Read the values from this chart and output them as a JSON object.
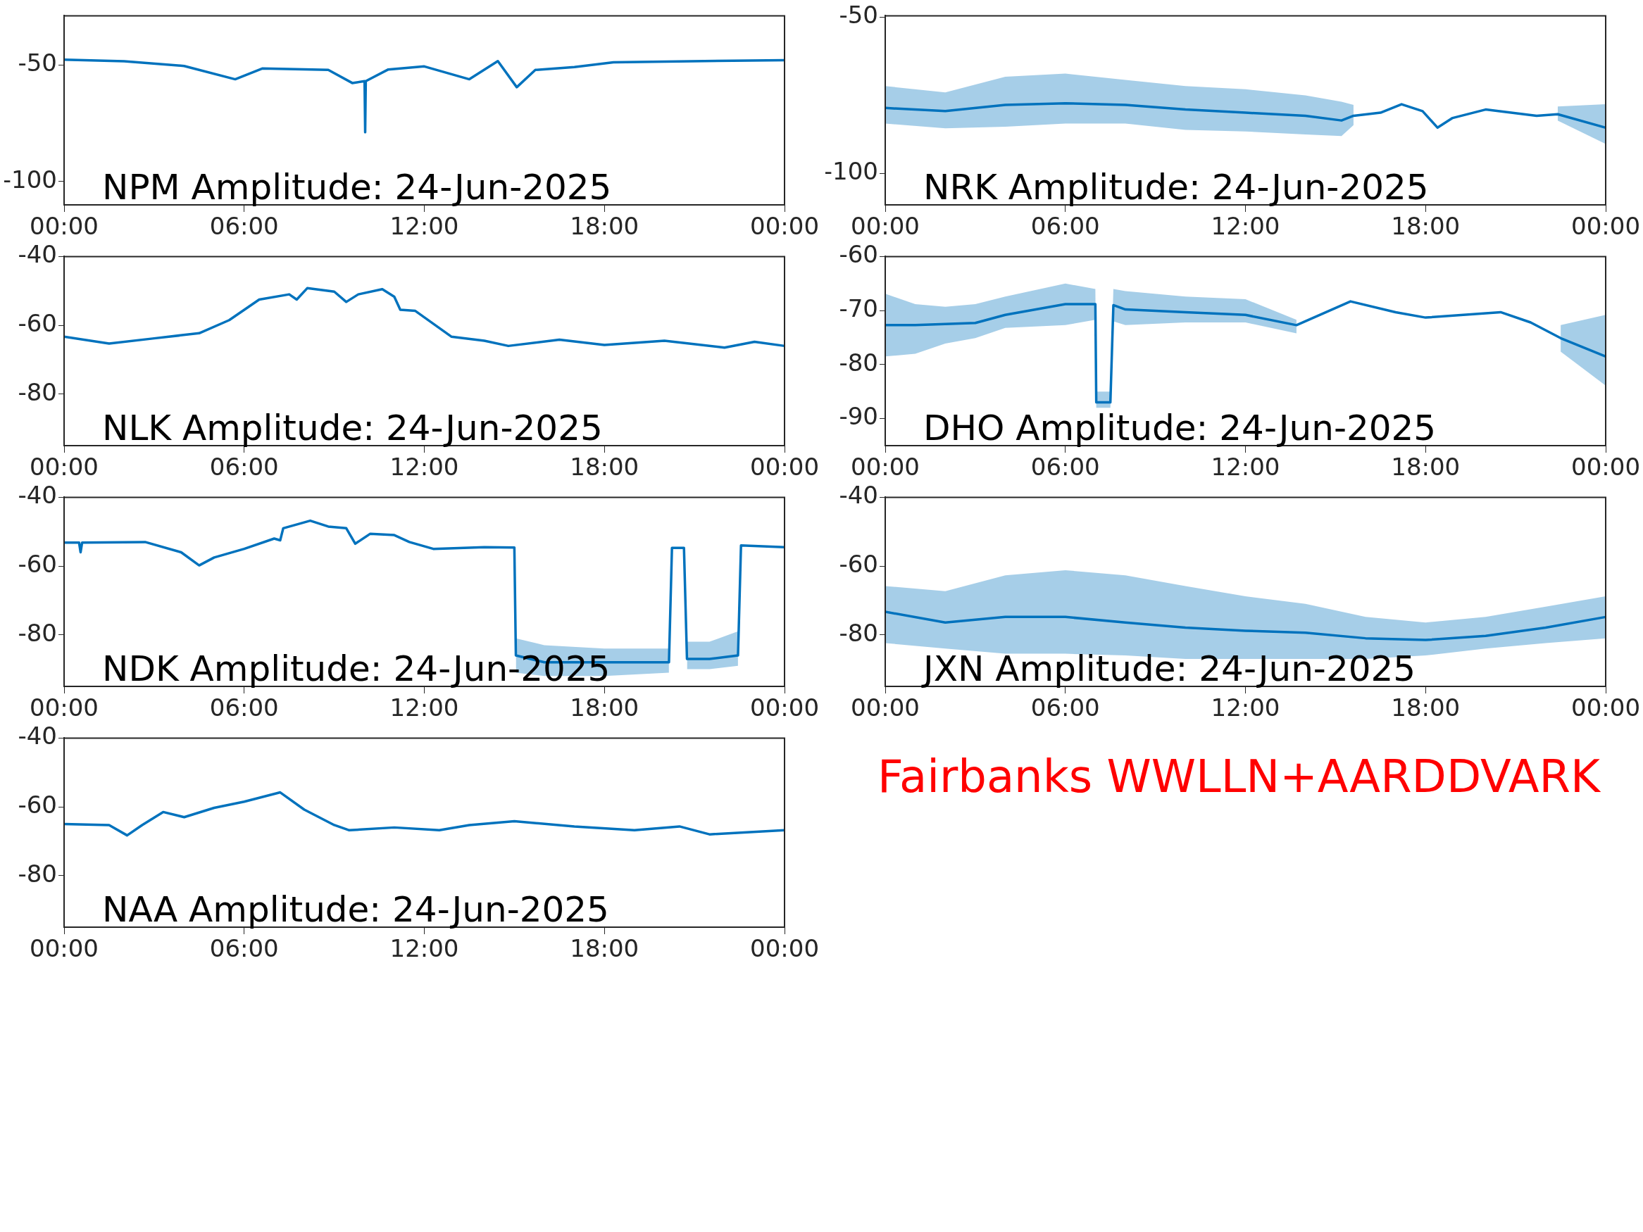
{
  "chart_data": [
    {
      "type": "line",
      "title": "NPM Amplitude: 24-Jun-2025",
      "xlim": [
        0,
        24
      ],
      "xticks": [
        {
          "value": 0,
          "label": "00:00"
        },
        {
          "value": 6,
          "label": "06:00"
        },
        {
          "value": 12,
          "label": "12:00"
        },
        {
          "value": 18,
          "label": "18:00"
        },
        {
          "value": 24,
          "label": "00:00"
        }
      ],
      "ylim": [
        -110,
        -29
      ],
      "yticks": [
        -100,
        -50
      ],
      "x": [
        0,
        2,
        4,
        5.7,
        6.6,
        8.8,
        9.6,
        10.01,
        10.03,
        10.05,
        10.8,
        12,
        13.5,
        14.45,
        15.08,
        15.7,
        17,
        18.3,
        24
      ],
      "series": [
        {
          "color": "#0072bd",
          "values": [
            -47.8,
            -48.5,
            -50.5,
            -56.2,
            -51.6,
            -52.2,
            -57.8,
            -57,
            -78.9,
            -57,
            -52,
            -50.7,
            -56.2,
            -48.4,
            -59.6,
            -52.2,
            -51,
            -48.9,
            -48
          ]
        }
      ]
    },
    {
      "type": "line",
      "title": "NRK Amplitude: 24-Jun-2025",
      "xlim": [
        0,
        24
      ],
      "xticks": [
        {
          "value": 0,
          "label": "00:00"
        },
        {
          "value": 6,
          "label": "06:00"
        },
        {
          "value": 12,
          "label": "12:00"
        },
        {
          "value": 18,
          "label": "18:00"
        },
        {
          "value": 24,
          "label": "00:00"
        }
      ],
      "ylim": [
        -110,
        -49.5
      ],
      "yticks": [
        -100,
        -50
      ],
      "x": [
        0,
        2,
        4,
        6,
        8,
        10,
        12,
        14,
        15.2,
        15.6,
        16.5,
        17.2,
        17.9,
        18.4,
        18.9,
        20,
        21.7,
        22.4,
        24
      ],
      "series": [
        {
          "color": "#0072bd",
          "values": [
            -79,
            -80,
            -78,
            -77.5,
            -78,
            -79.5,
            -80.5,
            -81.5,
            -83,
            -81.5,
            -80.5,
            -77.8,
            -80,
            -85.3,
            -82.2,
            -79.5,
            -81.5,
            -81,
            -85.3
          ],
          "upper": [
            -72,
            -74,
            -69,
            -68,
            -70,
            -72,
            -73,
            -75,
            -77,
            -78,
            null,
            null,
            null,
            null,
            null,
            null,
            null,
            -78.5,
            -77.8
          ],
          "lower": [
            -84,
            -85.5,
            -85,
            -84,
            -84,
            -86,
            -86.5,
            -87.5,
            -88,
            -84.5,
            null,
            null,
            null,
            null,
            null,
            null,
            null,
            -83,
            -90.5
          ]
        }
      ]
    },
    {
      "type": "line",
      "title": "NLK Amplitude: 24-Jun-2025",
      "xlim": [
        0,
        24
      ],
      "xticks": [
        {
          "value": 0,
          "label": "00:00"
        },
        {
          "value": 6,
          "label": "06:00"
        },
        {
          "value": 12,
          "label": "12:00"
        },
        {
          "value": 18,
          "label": "18:00"
        },
        {
          "value": 24,
          "label": "00:00"
        }
      ],
      "ylim": [
        -95,
        -40
      ],
      "yticks": [
        -80,
        -60,
        -40
      ],
      "x": [
        0,
        1.5,
        3,
        4.5,
        5.5,
        6.5,
        7.5,
        7.75,
        8.1,
        9,
        9.4,
        9.8,
        10.6,
        11,
        11.2,
        11.7,
        12.9,
        14,
        14.8,
        16.5,
        18,
        20,
        22,
        23,
        24
      ],
      "series": [
        {
          "color": "#0072bd",
          "values": [
            -63.3,
            -65.3,
            -63.8,
            -62.3,
            -58.5,
            -52.5,
            -51,
            -52.5,
            -49.2,
            -50.2,
            -53.2,
            -51,
            -49.5,
            -51.7,
            -55.5,
            -55.8,
            -63.3,
            -64.5,
            -66,
            -64.2,
            -65.7,
            -64.5,
            -66.5,
            -64.8,
            -66
          ]
        }
      ]
    },
    {
      "type": "line",
      "title": "DHO Amplitude: 24-Jun-2025",
      "xlim": [
        0,
        24
      ],
      "xticks": [
        {
          "value": 0,
          "label": "00:00"
        },
        {
          "value": 6,
          "label": "06:00"
        },
        {
          "value": 12,
          "label": "12:00"
        },
        {
          "value": 18,
          "label": "18:00"
        },
        {
          "value": 24,
          "label": "00:00"
        }
      ],
      "ylim": [
        -95,
        -60
      ],
      "yticks": [
        -90,
        -80,
        -70,
        -60
      ],
      "x": [
        0,
        1,
        2,
        3,
        4,
        6,
        7,
        7.03,
        7.5,
        7.6,
        8,
        10,
        12,
        13.7,
        15.5,
        17,
        18,
        20.5,
        21.5,
        22.5,
        24
      ],
      "series": [
        {
          "color": "#0072bd",
          "values": [
            -72.7,
            -72.7,
            -72.5,
            -72.3,
            -70.8,
            -68.8,
            -68.8,
            -87,
            -87,
            -69,
            -69.8,
            -70.3,
            -70.8,
            -72.7,
            -68.3,
            -70.3,
            -71.3,
            -70.3,
            -72.2,
            -75.1,
            -78.5
          ],
          "upper": [
            -66.9,
            -68.8,
            -69.3,
            -68.8,
            -67.4,
            -65,
            -66,
            -85,
            -85,
            -66,
            -66.4,
            -67.4,
            -67.9,
            -71.7,
            null,
            null,
            null,
            null,
            null,
            -72.7,
            -70.8
          ],
          "lower": [
            -78.5,
            -78,
            -76.1,
            -75.1,
            -73.2,
            -72.7,
            -71.7,
            -88,
            -88,
            -72,
            -72.7,
            -72.2,
            -72.2,
            -74.2,
            null,
            null,
            null,
            null,
            null,
            -77.6,
            -83.9
          ]
        }
      ]
    },
    {
      "type": "line",
      "title": "NDK Amplitude: 24-Jun-2025",
      "xlim": [
        0,
        24
      ],
      "xticks": [
        {
          "value": 0,
          "label": "00:00"
        },
        {
          "value": 6,
          "label": "06:00"
        },
        {
          "value": 12,
          "label": "12:00"
        },
        {
          "value": 18,
          "label": "18:00"
        },
        {
          "value": 24,
          "label": "00:00"
        }
      ],
      "ylim": [
        -95,
        -40
      ],
      "yticks": [
        -80,
        -60,
        -40
      ],
      "x": [
        0,
        0.5,
        0.55,
        0.6,
        2.7,
        3.9,
        4.5,
        5,
        6,
        7,
        7.2,
        7.3,
        8.2,
        8.8,
        9.4,
        9.7,
        10.2,
        11,
        11.5,
        12.3,
        14,
        15,
        15.05,
        16,
        18,
        20.15,
        20.25,
        20.65,
        20.75,
        21.5,
        22.45,
        22.55,
        24
      ],
      "series": [
        {
          "color": "#0072bd",
          "values": [
            -53.2,
            -53.2,
            -56,
            -53.2,
            -53,
            -56,
            -59.8,
            -57.5,
            -55,
            -52,
            -52.5,
            -49,
            -46.8,
            -48.5,
            -49,
            -53.5,
            -50.6,
            -51,
            -53,
            -55,
            -54.5,
            -54.6,
            -86,
            -88,
            -88,
            -88,
            -54.7,
            -54.7,
            -87,
            -87,
            -86,
            -54,
            -54.5
          ],
          "upper": [
            null,
            null,
            null,
            null,
            null,
            null,
            null,
            null,
            null,
            null,
            null,
            null,
            null,
            null,
            null,
            null,
            null,
            null,
            null,
            null,
            null,
            null,
            -81,
            -83,
            -84,
            -84,
            null,
            null,
            -82,
            -82,
            -79,
            null,
            null
          ],
          "lower": [
            null,
            null,
            null,
            null,
            null,
            null,
            null,
            null,
            null,
            null,
            null,
            null,
            null,
            null,
            null,
            null,
            null,
            null,
            null,
            null,
            null,
            null,
            -91,
            -92,
            -92,
            -91,
            null,
            null,
            -90,
            -90,
            -89,
            null,
            null
          ]
        }
      ]
    },
    {
      "type": "line",
      "title": "JXN Amplitude: 24-Jun-2025",
      "xlim": [
        0,
        24
      ],
      "xticks": [
        {
          "value": 0,
          "label": "00:00"
        },
        {
          "value": 6,
          "label": "06:00"
        },
        {
          "value": 12,
          "label": "12:00"
        },
        {
          "value": 18,
          "label": "18:00"
        },
        {
          "value": 24,
          "label": "00:00"
        }
      ],
      "ylim": [
        -95,
        -40
      ],
      "yticks": [
        -80,
        -60,
        -40
      ],
      "x": [
        0,
        2,
        4,
        6,
        8,
        10,
        12,
        14,
        16,
        18,
        20,
        22,
        24
      ],
      "series": [
        {
          "color": "#0072bd",
          "values": [
            -73.3,
            -76.4,
            -74.8,
            -74.8,
            -76.4,
            -77.9,
            -78.8,
            -79.4,
            -81,
            -81.5,
            -80.3,
            -77.9,
            -74.8
          ],
          "upper": [
            -65.8,
            -67.3,
            -62.7,
            -61.2,
            -62.7,
            -65.8,
            -68.8,
            -71,
            -74.8,
            -76.4,
            -74.8,
            -71.8,
            -68.8
          ],
          "lower": [
            -82.4,
            -84,
            -85.5,
            -85.5,
            -86,
            -87,
            -87,
            -87,
            -87,
            -86,
            -84,
            -82.4,
            -81
          ]
        }
      ]
    },
    {
      "type": "line",
      "title": "NAA Amplitude: 24-Jun-2025",
      "xlim": [
        0,
        24
      ],
      "xticks": [
        {
          "value": 0,
          "label": "00:00"
        },
        {
          "value": 6,
          "label": "06:00"
        },
        {
          "value": 12,
          "label": "12:00"
        },
        {
          "value": 18,
          "label": "18:00"
        },
        {
          "value": 24,
          "label": "00:00"
        }
      ],
      "ylim": [
        -95,
        -40
      ],
      "yticks": [
        -80,
        -60,
        -40
      ],
      "x": [
        0,
        1.5,
        2.1,
        2.6,
        3.3,
        4,
        5,
        6,
        7.2,
        8,
        9,
        9.5,
        11,
        12.5,
        13.5,
        15,
        17,
        19,
        20.5,
        21.5,
        24
      ],
      "series": [
        {
          "color": "#0072bd",
          "values": [
            -65,
            -65.3,
            -68.3,
            -65.3,
            -61.5,
            -63,
            -60.3,
            -58.5,
            -55.8,
            -60.8,
            -65.3,
            -66.8,
            -66,
            -66.8,
            -65.3,
            -64.2,
            -65.7,
            -66.8,
            -65.7,
            -68,
            -66.8
          ]
        }
      ]
    },
    {
      "type": "other",
      "color": "#ff0000",
      "annotations": [
        "Fairbanks WWLLN+AARDDVARK"
      ]
    }
  ]
}
